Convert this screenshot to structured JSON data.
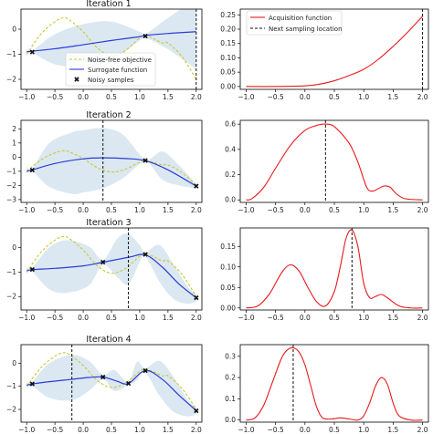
{
  "colors": {
    "objective": "#c8c832",
    "surrogate": "#2b3bd6",
    "uncertainty": "#cfe0ee",
    "acquisition": "#e8191c",
    "marker": "#111111",
    "sampling_line": "#111111"
  },
  "legends": {
    "left": [
      "Noise-free objective",
      "Surrogate function",
      "Noisy samples"
    ],
    "right": [
      "Acquisition function",
      "Next sampling location"
    ]
  },
  "chart_data": [
    {
      "panel": "iteration-1-surrogate",
      "type": "line",
      "title": "Iteration 1",
      "xlim": [
        -1.1,
        2.1
      ],
      "ylim": [
        -2.4,
        0.8
      ],
      "xticks": [
        -1.0,
        -0.5,
        0.0,
        0.5,
        1.0,
        1.5,
        2.0
      ],
      "xtick_labels": [
        "−1.0",
        "−0.5",
        "0.0",
        "0.5",
        "1.0",
        "1.5",
        "2.0"
      ],
      "yticks": [
        0,
        -1,
        -2
      ],
      "ytick_labels": [
        "0",
        "−1",
        "−2"
      ],
      "next_sample_x": 2.0,
      "legend": "lower-left",
      "series": [
        {
          "name": "Noise-free objective",
          "x": [
            -1.0,
            -0.75,
            -0.5,
            -0.35,
            -0.25,
            0.0,
            0.25,
            0.5,
            0.75,
            1.0,
            1.1,
            1.25,
            1.4,
            1.5,
            1.75,
            2.0
          ],
          "y": [
            -1.0,
            -0.2,
            0.3,
            0.45,
            0.38,
            -0.1,
            -0.75,
            -1.05,
            -0.85,
            -0.35,
            -0.25,
            -0.38,
            -0.55,
            -0.55,
            -1.1,
            -2.0
          ]
        },
        {
          "name": "Surrogate function",
          "x": [
            -1.0,
            -0.5,
            0.0,
            0.5,
            1.0,
            1.1,
            1.5,
            2.0
          ],
          "y": [
            -0.9,
            -0.78,
            -0.62,
            -0.45,
            -0.3,
            -0.25,
            -0.17,
            -0.1
          ]
        },
        {
          "name": "Noisy samples",
          "x": [
            -0.9,
            1.1
          ],
          "y": [
            -0.9,
            -0.28
          ]
        }
      ],
      "band": {
        "x": [
          -1.0,
          -0.9,
          -0.5,
          0.0,
          0.5,
          1.0,
          1.1,
          1.5,
          2.0
        ],
        "lower": [
          -1.05,
          -0.95,
          -1.4,
          -1.5,
          -1.25,
          -0.45,
          -0.35,
          -0.8,
          -1.6
        ],
        "upper": [
          -0.75,
          -0.85,
          -0.2,
          0.2,
          0.3,
          -0.1,
          -0.2,
          0.45,
          1.2
        ]
      }
    },
    {
      "panel": "iteration-1-acquisition",
      "type": "line",
      "xlim": [
        -1.1,
        2.1
      ],
      "ylim": [
        -0.01,
        0.27
      ],
      "xticks": [
        -1.0,
        -0.5,
        0.0,
        0.5,
        1.0,
        1.5,
        2.0
      ],
      "xtick_labels": [
        "−1.0",
        "−0.5",
        "0.0",
        "0.5",
        "1.0",
        "1.5",
        "2.0"
      ],
      "yticks": [
        0.0,
        0.05,
        0.1,
        0.15,
        0.2,
        0.25
      ],
      "ytick_labels": [
        "0.00",
        "0.05",
        "0.10",
        "0.15",
        "0.20",
        "0.25"
      ],
      "next_sample_x": 2.0,
      "legend": "upper-left",
      "series": [
        {
          "name": "Acquisition function",
          "x": [
            -1.0,
            -0.5,
            0.0,
            0.25,
            0.5,
            0.75,
            1.0,
            1.25,
            1.5,
            1.75,
            2.0
          ],
          "y": [
            0.0,
            0.0,
            0.002,
            0.008,
            0.02,
            0.038,
            0.06,
            0.095,
            0.14,
            0.19,
            0.245
          ]
        }
      ]
    },
    {
      "panel": "iteration-2-surrogate",
      "type": "line",
      "title": "Iteration 2",
      "xlim": [
        -1.1,
        2.1
      ],
      "ylim": [
        -3.2,
        2.6
      ],
      "xticks": [
        -1.0,
        -0.5,
        0.0,
        0.5,
        1.0,
        1.5,
        2.0
      ],
      "xtick_labels": [
        "−1.0",
        "−0.5",
        "0.0",
        "0.5",
        "1.0",
        "1.5",
        "2.0"
      ],
      "yticks": [
        2,
        1,
        0,
        -1,
        -2,
        -3
      ],
      "ytick_labels": [
        "2",
        "1",
        "0",
        "−1",
        "−2",
        "−3"
      ],
      "next_sample_x": 0.35,
      "series": [
        {
          "name": "Noise-free objective",
          "x": [
            -1.0,
            -0.75,
            -0.5,
            -0.35,
            -0.25,
            0.0,
            0.25,
            0.5,
            0.75,
            1.0,
            1.1,
            1.25,
            1.4,
            1.5,
            1.75,
            2.0
          ],
          "y": [
            -1.0,
            -0.2,
            0.3,
            0.45,
            0.38,
            -0.1,
            -0.75,
            -1.05,
            -0.85,
            -0.35,
            -0.25,
            -0.38,
            -0.55,
            -0.55,
            -1.1,
            -2.0
          ]
        },
        {
          "name": "Surrogate function",
          "x": [
            -1.0,
            -0.9,
            -0.5,
            0.0,
            0.35,
            0.75,
            1.1,
            1.5,
            2.0
          ],
          "y": [
            -1.0,
            -0.9,
            -0.45,
            -0.12,
            -0.05,
            -0.1,
            -0.25,
            -0.9,
            -2.05
          ]
        },
        {
          "name": "Noisy samples",
          "x": [
            -0.9,
            1.1,
            2.0
          ],
          "y": [
            -0.9,
            -0.25,
            -2.05
          ]
        }
      ],
      "band": {
        "x": [
          -1.0,
          -0.9,
          -0.6,
          -0.2,
          0.0,
          0.35,
          0.7,
          1.1,
          1.4,
          1.7,
          2.0
        ],
        "lower": [
          -1.2,
          -1.0,
          -2.1,
          -2.6,
          -2.5,
          -2.2,
          -1.5,
          -0.35,
          -1.6,
          -2.0,
          -2.2
        ],
        "upper": [
          -0.6,
          -0.8,
          1.0,
          1.75,
          1.9,
          2.05,
          1.6,
          -0.15,
          0.4,
          -0.6,
          -1.9
        ]
      }
    },
    {
      "panel": "iteration-2-acquisition",
      "type": "line",
      "xlim": [
        -1.1,
        2.1
      ],
      "ylim": [
        -0.02,
        0.63
      ],
      "xticks": [
        -1.0,
        -0.5,
        0.0,
        0.5,
        1.0,
        1.5,
        2.0
      ],
      "xtick_labels": [
        "−1.0",
        "−0.5",
        "0.0",
        "0.5",
        "1.0",
        "1.5",
        "2.0"
      ],
      "yticks": [
        0.0,
        0.2,
        0.4,
        0.6
      ],
      "ytick_labels": [
        "0.0",
        "0.2",
        "0.4",
        "0.6"
      ],
      "next_sample_x": 0.35,
      "series": [
        {
          "name": "Acquisition function",
          "x": [
            -1.0,
            -0.9,
            -0.7,
            -0.5,
            -0.25,
            0.0,
            0.2,
            0.35,
            0.5,
            0.75,
            0.9,
            1.05,
            1.15,
            1.25,
            1.35,
            1.45,
            1.55,
            1.7,
            2.0
          ],
          "y": [
            0.0,
            0.01,
            0.1,
            0.25,
            0.43,
            0.55,
            0.59,
            0.6,
            0.58,
            0.45,
            0.3,
            0.1,
            0.07,
            0.09,
            0.11,
            0.1,
            0.05,
            0.01,
            0.0
          ]
        }
      ]
    },
    {
      "panel": "iteration-3-surrogate",
      "type": "line",
      "title": "Iteration 3",
      "xlim": [
        -1.1,
        2.1
      ],
      "ylim": [
        -2.55,
        0.8
      ],
      "xticks": [
        -1.0,
        -0.5,
        0.0,
        0.5,
        1.0,
        1.5,
        2.0
      ],
      "xtick_labels": [
        "−1.0",
        "−0.5",
        "0.0",
        "0.5",
        "1.0",
        "1.5",
        "2.0"
      ],
      "yticks": [
        0,
        -1,
        -2
      ],
      "ytick_labels": [
        "0",
        "−1",
        "−2"
      ],
      "next_sample_x": 0.8,
      "series": [
        {
          "name": "Noise-free objective",
          "x": [
            -1.0,
            -0.75,
            -0.5,
            -0.35,
            -0.25,
            0.0,
            0.25,
            0.5,
            0.75,
            1.0,
            1.1,
            1.25,
            1.4,
            1.5,
            1.75,
            2.0
          ],
          "y": [
            -1.0,
            -0.2,
            0.3,
            0.45,
            0.38,
            -0.1,
            -0.75,
            -1.05,
            -0.85,
            -0.35,
            -0.25,
            -0.38,
            -0.55,
            -0.55,
            -1.1,
            -2.0
          ]
        },
        {
          "name": "Surrogate function",
          "x": [
            -1.0,
            -0.9,
            -0.5,
            0.0,
            0.35,
            0.8,
            1.1,
            1.4,
            1.7,
            2.0
          ],
          "y": [
            -0.95,
            -0.9,
            -0.85,
            -0.75,
            -0.6,
            -0.4,
            -0.3,
            -0.8,
            -1.5,
            -2.05
          ]
        },
        {
          "name": "Noisy samples",
          "x": [
            -0.9,
            0.35,
            1.1,
            2.0
          ],
          "y": [
            -0.9,
            -0.6,
            -0.28,
            -2.05
          ]
        }
      ],
      "band": {
        "x": [
          -1.0,
          -0.9,
          -0.6,
          -0.3,
          0.1,
          0.35,
          0.6,
          0.8,
          1.0,
          1.1,
          1.35,
          1.6,
          1.85,
          2.0
        ],
        "lower": [
          -1.1,
          -1.0,
          -1.7,
          -1.85,
          -1.55,
          -0.7,
          -1.2,
          -1.5,
          -0.6,
          -0.35,
          -1.4,
          -2.1,
          -2.3,
          -2.2
        ],
        "upper": [
          -0.8,
          -0.8,
          0.0,
          0.3,
          0.05,
          -0.5,
          0.35,
          0.55,
          0.1,
          -0.2,
          0.1,
          -0.7,
          -1.6,
          -1.9
        ]
      }
    },
    {
      "panel": "iteration-3-acquisition",
      "type": "line",
      "xlim": [
        -1.1,
        2.1
      ],
      "ylim": [
        -0.005,
        0.195
      ],
      "xticks": [
        -1.0,
        -0.5,
        0.0,
        0.5,
        1.0,
        1.5,
        2.0
      ],
      "xtick_labels": [
        "−1.0",
        "−0.5",
        "0.0",
        "0.5",
        "1.0",
        "1.5",
        "2.0"
      ],
      "yticks": [
        0.0,
        0.05,
        0.1,
        0.15
      ],
      "ytick_labels": [
        "0.00",
        "0.05",
        "0.10",
        "0.15"
      ],
      "next_sample_x": 0.8,
      "series": [
        {
          "name": "Acquisition function",
          "x": [
            -1.0,
            -0.8,
            -0.6,
            -0.4,
            -0.25,
            -0.1,
            0.05,
            0.2,
            0.35,
            0.5,
            0.6,
            0.7,
            0.8,
            0.9,
            1.0,
            1.1,
            1.2,
            1.3,
            1.4,
            1.6,
            1.8,
            2.0
          ],
          "y": [
            0.0,
            0.005,
            0.035,
            0.085,
            0.105,
            0.09,
            0.05,
            0.015,
            0.005,
            0.04,
            0.1,
            0.17,
            0.19,
            0.15,
            0.06,
            0.025,
            0.028,
            0.033,
            0.025,
            0.005,
            0.0,
            0.0
          ]
        }
      ]
    },
    {
      "panel": "iteration-4-surrogate",
      "type": "line",
      "title": "Iteration 4",
      "xlim": [
        -1.1,
        2.1
      ],
      "ylim": [
        -2.55,
        0.8
      ],
      "xticks": [
        -1.0,
        -0.5,
        0.0,
        0.5,
        1.0,
        1.5,
        2.0
      ],
      "xtick_labels": [
        "−1.0",
        "−0.5",
        "0.0",
        "0.5",
        "1.0",
        "1.5",
        "2.0"
      ],
      "yticks": [
        0,
        -1,
        -2
      ],
      "ytick_labels": [
        "0",
        "−1",
        "−2"
      ],
      "next_sample_x": -0.2,
      "series": [
        {
          "name": "Noise-free objective",
          "x": [
            -1.0,
            -0.75,
            -0.5,
            -0.35,
            -0.25,
            0.0,
            0.25,
            0.5,
            0.75,
            1.0,
            1.1,
            1.25,
            1.4,
            1.5,
            1.75,
            2.0
          ],
          "y": [
            -1.0,
            -0.2,
            0.3,
            0.45,
            0.38,
            -0.1,
            -0.75,
            -1.05,
            -0.85,
            -0.35,
            -0.25,
            -0.38,
            -0.55,
            -0.55,
            -1.1,
            -2.0
          ]
        },
        {
          "name": "Surrogate function",
          "x": [
            -1.0,
            -0.9,
            -0.6,
            -0.2,
            0.1,
            0.35,
            0.6,
            0.8,
            1.1,
            1.4,
            1.7,
            2.0
          ],
          "y": [
            -0.95,
            -0.9,
            -0.8,
            -0.7,
            -0.62,
            -0.6,
            -0.78,
            -0.88,
            -0.32,
            -0.7,
            -1.4,
            -2.05
          ]
        },
        {
          "name": "Noisy samples",
          "x": [
            -0.9,
            0.35,
            0.8,
            1.1,
            2.0
          ],
          "y": [
            -0.9,
            -0.6,
            -0.88,
            -0.32,
            -2.05
          ]
        }
      ],
      "band": {
        "x": [
          -1.0,
          -0.9,
          -0.6,
          -0.2,
          0.1,
          0.35,
          0.55,
          0.8,
          0.95,
          1.1,
          1.35,
          1.6,
          1.85,
          2.0
        ],
        "lower": [
          -1.1,
          -1.0,
          -1.5,
          -1.6,
          -1.2,
          -0.7,
          -1.2,
          -0.95,
          -0.75,
          -0.42,
          -1.4,
          -2.1,
          -2.3,
          -2.2
        ],
        "upper": [
          -0.8,
          -0.8,
          0.0,
          0.35,
          0.1,
          -0.5,
          -0.3,
          -0.8,
          0.05,
          -0.22,
          0.1,
          -0.6,
          -1.6,
          -1.9
        ]
      }
    },
    {
      "panel": "iteration-4-acquisition",
      "type": "line",
      "xlim": [
        -1.1,
        2.1
      ],
      "ylim": [
        -0.01,
        0.355
      ],
      "xticks": [
        -1.0,
        -0.5,
        0.0,
        0.5,
        1.0,
        1.5,
        2.0
      ],
      "xtick_labels": [
        "−1.0",
        "−0.5",
        "0.0",
        "0.5",
        "1.0",
        "1.5",
        "2.0"
      ],
      "yticks": [
        0.0,
        0.1,
        0.2,
        0.3
      ],
      "ytick_labels": [
        "0.0",
        "0.1",
        "0.2",
        "0.3"
      ],
      "next_sample_x": -0.2,
      "series": [
        {
          "name": "Acquisition function",
          "x": [
            -1.0,
            -0.85,
            -0.7,
            -0.55,
            -0.4,
            -0.3,
            -0.2,
            -0.1,
            0.0,
            0.1,
            0.2,
            0.3,
            0.45,
            0.6,
            0.75,
            0.9,
            1.0,
            1.1,
            1.2,
            1.3,
            1.4,
            1.5,
            1.6,
            1.8,
            2.0
          ],
          "y": [
            0.0,
            0.01,
            0.07,
            0.18,
            0.29,
            0.33,
            0.34,
            0.32,
            0.26,
            0.16,
            0.06,
            0.01,
            0.005,
            0.01,
            0.005,
            0.0,
            0.02,
            0.08,
            0.16,
            0.2,
            0.17,
            0.08,
            0.02,
            0.0,
            0.0
          ]
        }
      ]
    }
  ]
}
